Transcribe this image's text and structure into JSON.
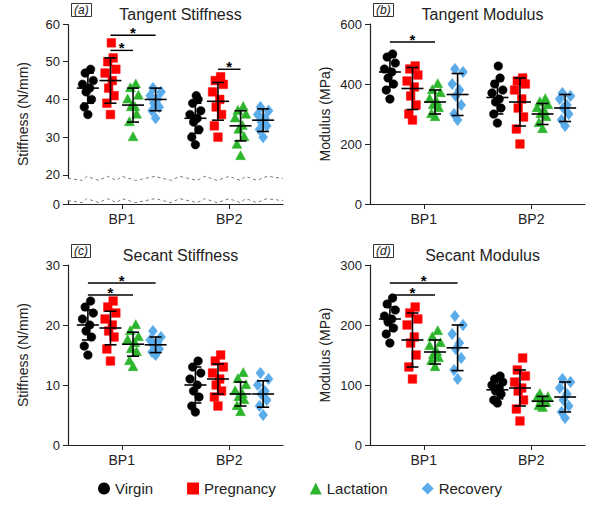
{
  "chart_data": [
    {
      "type": "scatter",
      "title": "Tangent Stiffness",
      "panel_label": "(a)",
      "ylabel": "Stiffness (N/mm)",
      "categories": [
        "BP1",
        "BP2"
      ],
      "ylim": [
        0,
        60
      ],
      "yticks": [
        0,
        20,
        30,
        40,
        50,
        60
      ],
      "ybreak": [
        1,
        19
      ],
      "grid": false,
      "legend": "bottom",
      "series": [
        {
          "name": "Virgin",
          "color": "#000000",
          "marker": "circle",
          "values": [
            [
              36,
              38,
              40,
              42,
              43,
              44,
              45,
              47,
              48
            ],
            [
              28,
              30,
              32,
              34,
              35,
              36,
              37,
              39,
              40,
              41
            ]
          ],
          "mean": [
            43,
            35
          ],
          "sd": [
            4,
            4
          ]
        },
        {
          "name": "Pregnancy",
          "color": "#ff0000",
          "marker": "square",
          "values": [
            [
              36,
              39,
              41,
              43,
              45,
              47,
              48,
              50,
              51,
              55
            ],
            [
              30,
              33,
              36,
              38,
              40,
              42,
              44,
              45,
              46
            ]
          ],
          "mean": [
            45,
            39.5
          ],
          "sd": [
            6,
            5
          ]
        },
        {
          "name": "Lactation",
          "color": "#2db52d",
          "marker": "triangle",
          "values": [
            [
              30,
              34,
              36,
              38,
              38,
              40,
              41,
              43,
              44
            ],
            [
              25,
              28,
              30,
              32,
              33,
              35,
              36,
              37,
              38
            ]
          ],
          "mean": [
            38.5,
            33
          ],
          "sd": [
            4.5,
            4
          ]
        },
        {
          "name": "Recovery",
          "color": "#5aabea",
          "marker": "diamond",
          "values": [
            [
              35,
              37,
              38,
              39,
              40,
              41,
              42,
              43
            ],
            [
              30,
              32,
              33,
              34,
              35,
              36,
              37,
              38
            ]
          ],
          "mean": [
            40,
            34.5
          ],
          "sd": [
            3,
            3
          ]
        }
      ],
      "significance": [
        {
          "category": "BP1",
          "from": "Pregnancy",
          "to": "Recovery",
          "y": 57,
          "label": "*"
        },
        {
          "category": "BP1",
          "from": "Pregnancy",
          "to": "Lactation",
          "y": 53,
          "label": "*"
        },
        {
          "category": "BP2",
          "from": "Pregnancy",
          "to": "Lactation",
          "y": 48,
          "label": "*"
        }
      ]
    },
    {
      "type": "scatter",
      "title": "Tangent Modulus",
      "panel_label": "(b)",
      "ylabel": "Modulus (MPa)",
      "categories": [
        "BP1",
        "BP2"
      ],
      "ylim": [
        0,
        600
      ],
      "yticks": [
        0,
        200,
        400,
        600
      ],
      "grid": false,
      "legend": "bottom",
      "series": [
        {
          "name": "Virgin",
          "color": "#000000",
          "marker": "circle",
          "values": [
            [
              350,
              380,
              400,
              420,
              440,
              450,
              470,
              490,
              500
            ],
            [
              270,
              300,
              320,
              340,
              350,
              370,
              380,
              400,
              420,
              460
            ]
          ],
          "mean": [
            440,
            355
          ],
          "sd": [
            50,
            55
          ]
        },
        {
          "name": "Pregnancy",
          "color": "#ff0000",
          "marker": "square",
          "values": [
            [
              280,
              300,
              330,
              360,
              390,
              410,
              430,
              450,
              460
            ],
            [
              200,
              250,
              290,
              320,
              350,
              380,
              400,
              410,
              420
            ]
          ],
          "mean": [
            385,
            340
          ],
          "sd": [
            70,
            80
          ]
        },
        {
          "name": "Lactation",
          "color": "#2db52d",
          "marker": "triangle",
          "values": [
            [
              290,
              300,
              320,
              330,
              340,
              350,
              370,
              380,
              400
            ],
            [
              250,
              270,
              290,
              300,
              310,
              320,
              330,
              340,
              350
            ]
          ],
          "mean": [
            340,
            300
          ],
          "sd": [
            40,
            35
          ]
        },
        {
          "name": "Recovery",
          "color": "#5aabea",
          "marker": "diamond",
          "values": [
            [
              280,
              300,
              330,
              360,
              380,
              400,
              440,
              450
            ],
            [
              260,
              280,
              300,
              320,
              330,
              350,
              360,
              370
            ]
          ],
          "mean": [
            365,
            320
          ],
          "sd": [
            70,
            45
          ]
        }
      ],
      "significance": [
        {
          "category": "BP1",
          "from": "Virgin",
          "to": "Lactation",
          "y": 540,
          "label": "*"
        }
      ]
    },
    {
      "type": "scatter",
      "title": "Secant Stiffness",
      "panel_label": "(c)",
      "ylabel": "Stiffness (N/mm)",
      "categories": [
        "BP1",
        "BP2"
      ],
      "ylim": [
        0,
        30
      ],
      "yticks": [
        0,
        10,
        20,
        30
      ],
      "grid": false,
      "legend": "bottom",
      "series": [
        {
          "name": "Virgin",
          "color": "#000000",
          "marker": "circle",
          "values": [
            [
              15,
              16.5,
              18,
              19,
              20,
              21,
              22,
              23,
              24
            ],
            [
              5.5,
              6.5,
              8,
              9,
              10,
              11,
              12,
              13,
              14
            ]
          ],
          "mean": [
            20,
            10
          ],
          "sd": [
            2.5,
            3
          ]
        },
        {
          "name": "Pregnancy",
          "color": "#ff0000",
          "marker": "square",
          "values": [
            [
              14,
              16,
              18,
              19,
              20,
              21,
              22,
              23,
              24
            ],
            [
              6.5,
              8,
              9,
              10,
              11,
              12,
              13,
              14,
              15
            ]
          ],
          "mean": [
            19.5,
            11
          ],
          "sd": [
            2.8,
            2.5
          ]
        },
        {
          "name": "Lactation",
          "color": "#2db52d",
          "marker": "triangle",
          "values": [
            [
              13,
              14,
              15.5,
              16,
              17,
              17.5,
              18,
              19,
              20
            ],
            [
              5.5,
              6.5,
              7.5,
              8,
              8.5,
              9,
              10,
              11,
              12
            ]
          ],
          "mean": [
            16.8,
            8.5
          ],
          "sd": [
            2,
            2
          ]
        },
        {
          "name": "Recovery",
          "color": "#5aabea",
          "marker": "diamond",
          "values": [
            [
              15,
              15.5,
              16,
              16.5,
              17,
              17.5,
              18,
              19
            ],
            [
              5,
              6.5,
              7.5,
              8.5,
              9,
              10,
              11,
              12
            ]
          ],
          "mean": [
            16.7,
            8.5
          ],
          "sd": [
            1.3,
            2.2
          ]
        }
      ],
      "significance": [
        {
          "category": "BP1",
          "from": "Virgin",
          "to": "Recovery",
          "y": 27,
          "label": "*"
        },
        {
          "category": "BP1",
          "from": "Virgin",
          "to": "Lactation",
          "y": 25,
          "label": "*"
        }
      ]
    },
    {
      "type": "scatter",
      "title": "Secant Modulus",
      "panel_label": "(d)",
      "ylabel": "Modulus (MPa)",
      "categories": [
        "BP1",
        "BP2"
      ],
      "ylim": [
        0,
        300
      ],
      "yticks": [
        0,
        100,
        200,
        300
      ],
      "grid": false,
      "legend": "bottom",
      "series": [
        {
          "name": "Virgin",
          "color": "#000000",
          "marker": "circle",
          "values": [
            [
              170,
              185,
              195,
              205,
              210,
              215,
              225,
              235,
              245
            ],
            [
              70,
              75,
              85,
              90,
              95,
              100,
              105,
              110,
              115
            ]
          ],
          "mean": [
            210,
            92
          ],
          "sd": [
            20,
            15
          ]
        },
        {
          "name": "Pregnancy",
          "color": "#ff0000",
          "marker": "square",
          "values": [
            [
              110,
              130,
              150,
              170,
              180,
              200,
              210,
              220,
              230
            ],
            [
              40,
              60,
              75,
              90,
              95,
              105,
              115,
              125,
              145
            ]
          ],
          "mean": [
            175,
            95
          ],
          "sd": [
            45,
            30
          ]
        },
        {
          "name": "Lactation",
          "color": "#2db52d",
          "marker": "triangle",
          "values": [
            [
              130,
              140,
              145,
              150,
              155,
              165,
              170,
              180,
              190
            ],
            [
              62,
              65,
              70,
              72,
              75,
              78,
              80,
              85
            ]
          ],
          "mean": [
            155,
            73
          ],
          "sd": [
            20,
            8
          ]
        },
        {
          "name": "Recovery",
          "color": "#5aabea",
          "marker": "diamond",
          "values": [
            [
              110,
              125,
              145,
              160,
              170,
              185,
              200,
              215
            ],
            [
              45,
              55,
              65,
              75,
              85,
              95,
              105,
              110
            ]
          ],
          "mean": [
            162,
            80
          ],
          "sd": [
            38,
            25
          ]
        }
      ],
      "significance": [
        {
          "category": "BP1",
          "from": "Virgin",
          "to": "Recovery",
          "y": 270,
          "label": "*"
        },
        {
          "category": "BP1",
          "from": "Virgin",
          "to": "Lactation",
          "y": 250,
          "label": "*"
        }
      ]
    }
  ]
}
